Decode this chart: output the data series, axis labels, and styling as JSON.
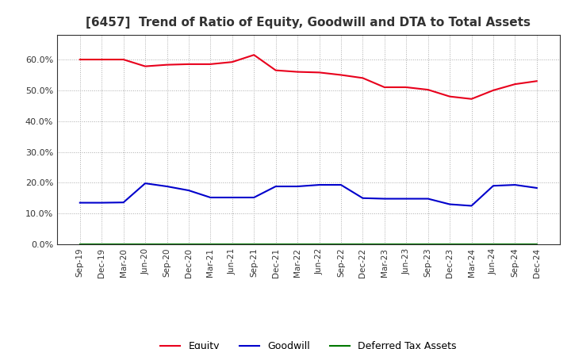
{
  "title": "[6457]  Trend of Ratio of Equity, Goodwill and DTA to Total Assets",
  "x_labels": [
    "Sep-19",
    "Dec-19",
    "Mar-20",
    "Jun-20",
    "Sep-20",
    "Dec-20",
    "Mar-21",
    "Jun-21",
    "Sep-21",
    "Dec-21",
    "Mar-22",
    "Jun-22",
    "Sep-22",
    "Dec-22",
    "Mar-23",
    "Jun-23",
    "Sep-23",
    "Dec-23",
    "Mar-24",
    "Jun-24",
    "Sep-24",
    "Dec-24"
  ],
  "equity": [
    0.6,
    0.6,
    0.6,
    0.578,
    0.583,
    0.585,
    0.585,
    0.592,
    0.615,
    0.565,
    0.56,
    0.558,
    0.55,
    0.54,
    0.51,
    0.51,
    0.502,
    0.48,
    0.472,
    0.5,
    0.52,
    0.53
  ],
  "goodwill": [
    0.135,
    0.135,
    0.136,
    0.198,
    0.188,
    0.175,
    0.152,
    0.152,
    0.152,
    0.188,
    0.188,
    0.193,
    0.193,
    0.15,
    0.148,
    0.148,
    0.148,
    0.13,
    0.125,
    0.19,
    0.193,
    0.183
  ],
  "dta": [
    0.001,
    0.001,
    0.001,
    0.001,
    0.001,
    0.001,
    0.001,
    0.001,
    0.001,
    0.001,
    0.001,
    0.001,
    0.001,
    0.001,
    0.001,
    0.001,
    0.001,
    0.001,
    0.001,
    0.001,
    0.001,
    0.001
  ],
  "equity_color": "#e8001c",
  "goodwill_color": "#0000cc",
  "dta_color": "#007700",
  "bg_color": "#ffffff",
  "grid_color": "#aaaaaa",
  "ylim": [
    0.0,
    0.68
  ],
  "yticks": [
    0.0,
    0.1,
    0.2,
    0.3,
    0.4,
    0.5,
    0.6
  ],
  "title_fontsize": 11,
  "legend_labels": [
    "Equity",
    "Goodwill",
    "Deferred Tax Assets"
  ]
}
